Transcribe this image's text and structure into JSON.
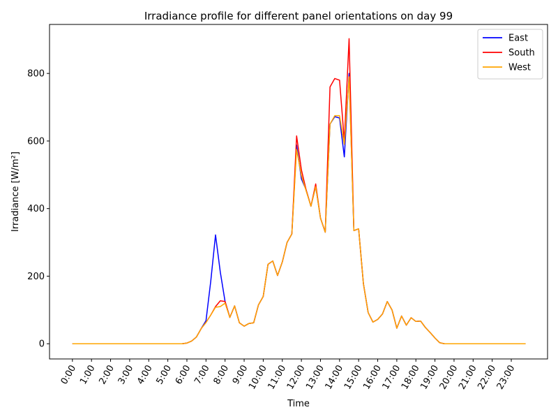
{
  "chart_data": {
    "type": "line",
    "title": "Irradiance profile for different panel orientations on day 99",
    "xlabel": "Time",
    "ylabel": "Irradiance [W/m²]",
    "x_ticks": [
      "0:00",
      "1:00",
      "2:00",
      "3:00",
      "4:00",
      "5:00",
      "6:00",
      "7:00",
      "8:00",
      "9:00",
      "10:00",
      "11:00",
      "12:00",
      "13:00",
      "14:00",
      "15:00",
      "16:00",
      "17:00",
      "18:00",
      "19:00",
      "20:00",
      "21:00",
      "22:00",
      "23:00"
    ],
    "y_ticks": [
      0,
      200,
      400,
      600,
      800
    ],
    "xlim": [
      -1.2,
      24.9
    ],
    "ylim": [
      -45,
      945
    ],
    "legend_position": "top-right",
    "grid": false,
    "x": [
      0,
      0.25,
      0.5,
      0.75,
      1,
      1.25,
      1.5,
      1.75,
      2,
      2.25,
      2.5,
      2.75,
      3,
      3.25,
      3.5,
      3.75,
      4,
      4.25,
      4.5,
      4.75,
      5,
      5.25,
      5.5,
      5.75,
      6,
      6.25,
      6.5,
      6.75,
      7,
      7.25,
      7.5,
      7.75,
      8,
      8.25,
      8.5,
      8.75,
      9,
      9.25,
      9.5,
      9.75,
      10,
      10.25,
      10.5,
      10.75,
      11,
      11.25,
      11.5,
      11.75,
      12,
      12.25,
      12.5,
      12.75,
      13,
      13.25,
      13.5,
      13.75,
      14,
      14.25,
      14.5,
      14.75,
      15,
      15.25,
      15.5,
      15.75,
      16,
      16.25,
      16.5,
      16.75,
      17,
      17.25,
      17.5,
      17.75,
      18,
      18.25,
      18.5,
      18.75,
      19,
      19.25,
      19.5,
      19.75,
      20,
      20.25,
      20.5,
      20.75,
      21,
      21.25,
      21.5,
      21.75,
      22,
      22.25,
      22.5,
      22.75,
      23,
      23.25,
      23.5,
      23.75
    ],
    "series": [
      {
        "name": "East",
        "color": "#0000ff",
        "values": [
          0,
          0,
          0,
          0,
          0,
          0,
          0,
          0,
          0,
          0,
          0,
          0,
          0,
          0,
          0,
          0,
          0,
          0,
          0,
          0,
          0,
          0,
          0,
          0,
          2,
          8,
          20,
          45,
          68,
          185,
          322,
          212,
          125,
          78,
          112,
          62,
          52,
          60,
          62,
          115,
          140,
          235,
          245,
          202,
          242,
          300,
          325,
          588,
          488,
          455,
          407,
          465,
          372,
          330,
          650,
          672,
          668,
          553,
          800,
          335,
          340,
          178,
          92,
          64,
          72,
          88,
          125,
          100,
          46,
          82,
          55,
          77,
          66,
          67,
          48,
          33,
          17,
          3,
          0,
          0,
          0,
          0,
          0,
          0,
          0,
          0,
          0,
          0,
          0,
          0,
          0,
          0,
          0,
          0,
          0,
          0
        ]
      },
      {
        "name": "South",
        "color": "#ff0000",
        "values": [
          0,
          0,
          0,
          0,
          0,
          0,
          0,
          0,
          0,
          0,
          0,
          0,
          0,
          0,
          0,
          0,
          0,
          0,
          0,
          0,
          0,
          0,
          0,
          0,
          2,
          8,
          20,
          45,
          63,
          85,
          110,
          127,
          125,
          78,
          112,
          62,
          52,
          60,
          62,
          115,
          140,
          235,
          245,
          202,
          242,
          300,
          325,
          615,
          515,
          455,
          407,
          473,
          372,
          330,
          760,
          785,
          780,
          600,
          903,
          335,
          340,
          178,
          92,
          64,
          72,
          88,
          125,
          100,
          46,
          82,
          55,
          77,
          66,
          67,
          48,
          33,
          17,
          3,
          0,
          0,
          0,
          0,
          0,
          0,
          0,
          0,
          0,
          0,
          0,
          0,
          0,
          0,
          0,
          0,
          0,
          0
        ]
      },
      {
        "name": "West",
        "color": "#ffa500",
        "values": [
          0,
          0,
          0,
          0,
          0,
          0,
          0,
          0,
          0,
          0,
          0,
          0,
          0,
          0,
          0,
          0,
          0,
          0,
          0,
          0,
          0,
          0,
          0,
          0,
          2,
          8,
          20,
          45,
          63,
          85,
          108,
          110,
          120,
          78,
          112,
          62,
          52,
          60,
          62,
          115,
          140,
          235,
          245,
          202,
          242,
          300,
          325,
          575,
          498,
          452,
          407,
          465,
          372,
          330,
          650,
          675,
          675,
          590,
          790,
          335,
          340,
          178,
          92,
          64,
          72,
          88,
          125,
          100,
          46,
          82,
          55,
          77,
          66,
          67,
          48,
          33,
          17,
          3,
          0,
          0,
          0,
          0,
          0,
          0,
          0,
          0,
          0,
          0,
          0,
          0,
          0,
          0,
          0,
          0,
          0,
          0
        ]
      }
    ]
  }
}
